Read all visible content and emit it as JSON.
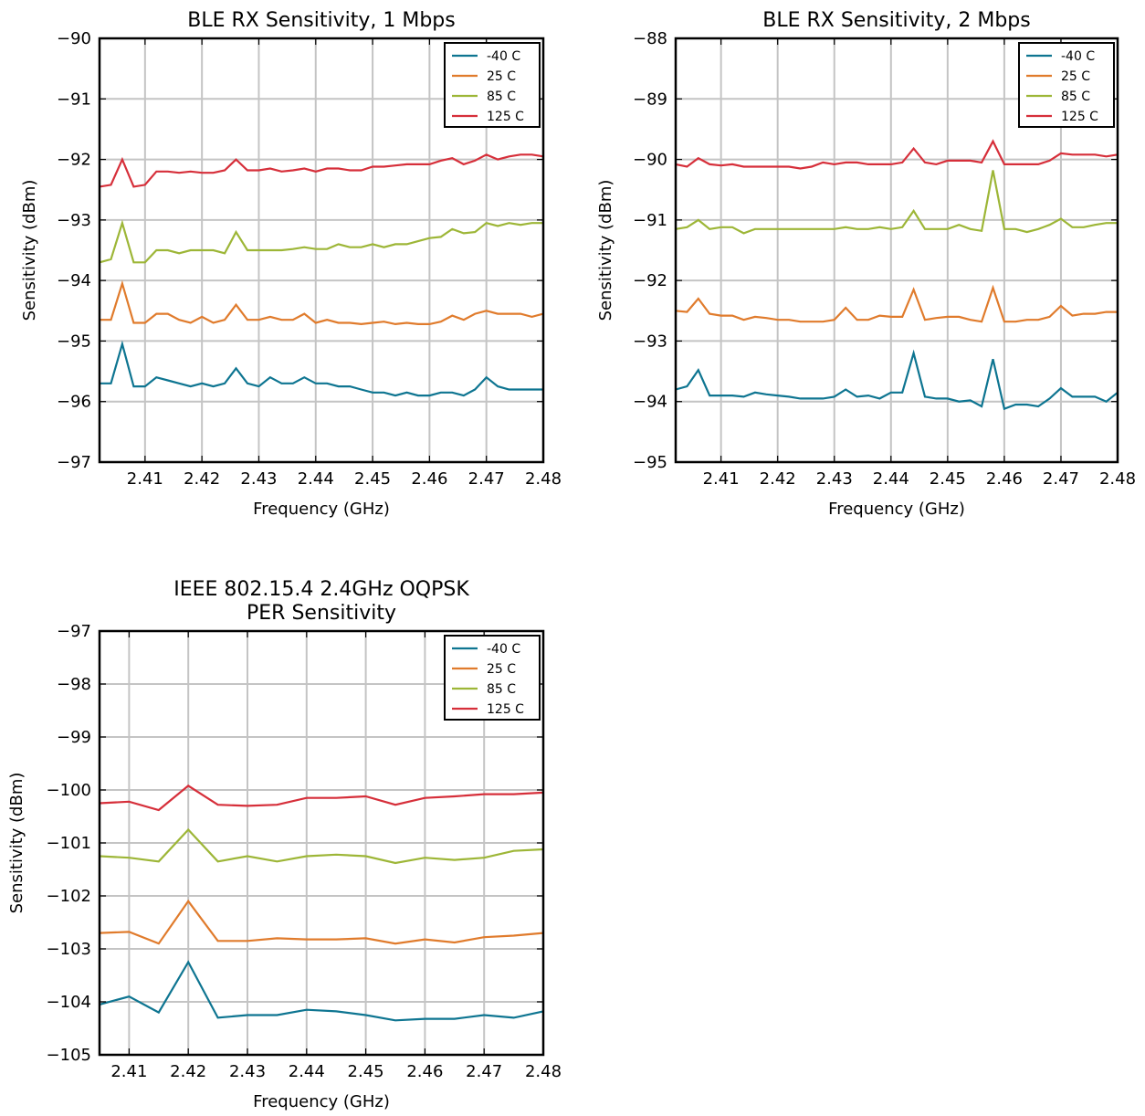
{
  "chart_data": [
    {
      "type": "line",
      "title_lines": [
        "BLE RX Sensitivity, 1 Mbps"
      ],
      "xlabel": "Frequency (GHz)",
      "ylabel": "Sensitivity (dBm)",
      "xlim": [
        2.402,
        2.48
      ],
      "ylim": [
        -97,
        -90
      ],
      "x_ticks": [
        2.41,
        2.42,
        2.43,
        2.44,
        2.45,
        2.46,
        2.47,
        2.48
      ],
      "x_tick_labels": [
        "2.41",
        "2.42",
        "2.43",
        "2.44",
        "2.45",
        "2.46",
        "2.47",
        "2.48"
      ],
      "y_ticks": [
        -97,
        -96,
        -95,
        -94,
        -93,
        -92,
        -91,
        -90
      ],
      "y_tick_labels": [
        "−97",
        "−96",
        "−95",
        "−94",
        "−93",
        "−92",
        "−91",
        "−90"
      ],
      "grid": true,
      "legend_position": "top-right",
      "x": [
        2.402,
        2.404,
        2.406,
        2.408,
        2.41,
        2.412,
        2.414,
        2.416,
        2.418,
        2.42,
        2.422,
        2.424,
        2.426,
        2.428,
        2.43,
        2.432,
        2.434,
        2.436,
        2.438,
        2.44,
        2.442,
        2.444,
        2.446,
        2.448,
        2.45,
        2.452,
        2.454,
        2.456,
        2.458,
        2.46,
        2.462,
        2.464,
        2.466,
        2.468,
        2.47,
        2.472,
        2.474,
        2.476,
        2.478,
        2.48
      ],
      "series": [
        {
          "name": "-40 C",
          "color": "#0e7591",
          "values": [
            -95.7,
            -95.7,
            -95.05,
            -95.75,
            -95.75,
            -95.6,
            -95.65,
            -95.7,
            -95.75,
            -95.7,
            -95.75,
            -95.7,
            -95.45,
            -95.7,
            -95.75,
            -95.6,
            -95.7,
            -95.7,
            -95.6,
            -95.7,
            -95.7,
            -95.75,
            -95.75,
            -95.8,
            -95.85,
            -95.85,
            -95.9,
            -95.85,
            -95.9,
            -95.9,
            -95.85,
            -95.85,
            -95.9,
            -95.8,
            -95.6,
            -95.75,
            -95.8,
            -95.8,
            -95.8,
            -95.8
          ]
        },
        {
          "name": "25 C",
          "color": "#e07b2c",
          "values": [
            -94.65,
            -94.65,
            -94.05,
            -94.7,
            -94.7,
            -94.55,
            -94.55,
            -94.65,
            -94.7,
            -94.6,
            -94.7,
            -94.65,
            -94.4,
            -94.65,
            -94.65,
            -94.6,
            -94.65,
            -94.65,
            -94.55,
            -94.7,
            -94.65,
            -94.7,
            -94.7,
            -94.72,
            -94.7,
            -94.68,
            -94.72,
            -94.7,
            -94.72,
            -94.72,
            -94.68,
            -94.58,
            -94.65,
            -94.55,
            -94.5,
            -94.55,
            -94.55,
            -94.55,
            -94.6,
            -94.55
          ]
        },
        {
          "name": "85 C",
          "color": "#9db637",
          "values": [
            -93.7,
            -93.65,
            -93.05,
            -93.7,
            -93.7,
            -93.5,
            -93.5,
            -93.55,
            -93.5,
            -93.5,
            -93.5,
            -93.55,
            -93.2,
            -93.5,
            -93.5,
            -93.5,
            -93.5,
            -93.48,
            -93.45,
            -93.48,
            -93.48,
            -93.4,
            -93.45,
            -93.45,
            -93.4,
            -93.45,
            -93.4,
            -93.4,
            -93.35,
            -93.3,
            -93.28,
            -93.15,
            -93.22,
            -93.2,
            -93.05,
            -93.1,
            -93.05,
            -93.08,
            -93.05,
            -93.05
          ]
        },
        {
          "name": "125 C",
          "color": "#d62f3a",
          "values": [
            -92.45,
            -92.42,
            -92.0,
            -92.45,
            -92.42,
            -92.2,
            -92.2,
            -92.22,
            -92.2,
            -92.22,
            -92.22,
            -92.18,
            -92.0,
            -92.18,
            -92.18,
            -92.15,
            -92.2,
            -92.18,
            -92.15,
            -92.2,
            -92.15,
            -92.15,
            -92.18,
            -92.18,
            -92.12,
            -92.12,
            -92.1,
            -92.08,
            -92.08,
            -92.08,
            -92.02,
            -91.98,
            -92.08,
            -92.02,
            -91.92,
            -92.0,
            -91.95,
            -91.92,
            -91.92,
            -91.95
          ]
        }
      ]
    },
    {
      "type": "line",
      "title_lines": [
        "BLE RX Sensitivity, 2 Mbps"
      ],
      "xlabel": "Frequency (GHz)",
      "ylabel": "Sensitivity (dBm)",
      "xlim": [
        2.402,
        2.48
      ],
      "ylim": [
        -95,
        -88
      ],
      "x_ticks": [
        2.41,
        2.42,
        2.43,
        2.44,
        2.45,
        2.46,
        2.47,
        2.48
      ],
      "x_tick_labels": [
        "2.41",
        "2.42",
        "2.43",
        "2.44",
        "2.45",
        "2.46",
        "2.47",
        "2.48"
      ],
      "y_ticks": [
        -95,
        -94,
        -93,
        -92,
        -91,
        -90,
        -89,
        -88
      ],
      "y_tick_labels": [
        "−95",
        "−94",
        "−93",
        "−92",
        "−91",
        "−90",
        "−89",
        "−88"
      ],
      "grid": true,
      "legend_position": "top-right",
      "x": [
        2.402,
        2.404,
        2.406,
        2.408,
        2.41,
        2.412,
        2.414,
        2.416,
        2.418,
        2.42,
        2.422,
        2.424,
        2.426,
        2.428,
        2.43,
        2.432,
        2.434,
        2.436,
        2.438,
        2.44,
        2.442,
        2.444,
        2.446,
        2.448,
        2.45,
        2.452,
        2.454,
        2.456,
        2.458,
        2.46,
        2.462,
        2.464,
        2.466,
        2.468,
        2.47,
        2.472,
        2.474,
        2.476,
        2.478,
        2.48
      ],
      "series": [
        {
          "name": "-40 C",
          "color": "#0e7591",
          "values": [
            -93.8,
            -93.75,
            -93.48,
            -93.9,
            -93.9,
            -93.9,
            -93.92,
            -93.85,
            -93.88,
            -93.9,
            -93.92,
            -93.95,
            -93.95,
            -93.95,
            -93.92,
            -93.8,
            -93.92,
            -93.9,
            -93.95,
            -93.85,
            -93.85,
            -93.2,
            -93.92,
            -93.95,
            -93.95,
            -94.0,
            -93.98,
            -94.08,
            -93.3,
            -94.12,
            -94.05,
            -94.05,
            -94.08,
            -93.95,
            -93.78,
            -93.92,
            -93.92,
            -93.92,
            -94.0,
            -93.85
          ]
        },
        {
          "name": "25 C",
          "color": "#e07b2c",
          "values": [
            -92.5,
            -92.52,
            -92.3,
            -92.55,
            -92.58,
            -92.58,
            -92.65,
            -92.6,
            -92.62,
            -92.65,
            -92.65,
            -92.68,
            -92.68,
            -92.68,
            -92.65,
            -92.45,
            -92.65,
            -92.65,
            -92.58,
            -92.6,
            -92.6,
            -92.15,
            -92.65,
            -92.62,
            -92.6,
            -92.6,
            -92.65,
            -92.68,
            -92.12,
            -92.68,
            -92.68,
            -92.65,
            -92.65,
            -92.6,
            -92.42,
            -92.58,
            -92.55,
            -92.55,
            -92.52,
            -92.52
          ]
        },
        {
          "name": "85 C",
          "color": "#9db637",
          "values": [
            -91.15,
            -91.12,
            -91.0,
            -91.15,
            -91.12,
            -91.12,
            -91.22,
            -91.15,
            -91.15,
            -91.15,
            -91.15,
            -91.15,
            -91.15,
            -91.15,
            -91.15,
            -91.12,
            -91.15,
            -91.15,
            -91.12,
            -91.15,
            -91.12,
            -90.85,
            -91.15,
            -91.15,
            -91.15,
            -91.08,
            -91.15,
            -91.18,
            -90.18,
            -91.15,
            -91.15,
            -91.2,
            -91.15,
            -91.08,
            -90.98,
            -91.12,
            -91.12,
            -91.08,
            -91.05,
            -91.05
          ]
        },
        {
          "name": "125 C",
          "color": "#d62f3a",
          "values": [
            -90.08,
            -90.12,
            -89.98,
            -90.08,
            -90.1,
            -90.08,
            -90.12,
            -90.12,
            -90.12,
            -90.12,
            -90.12,
            -90.15,
            -90.12,
            -90.05,
            -90.08,
            -90.05,
            -90.05,
            -90.08,
            -90.08,
            -90.08,
            -90.05,
            -89.82,
            -90.05,
            -90.08,
            -90.02,
            -90.02,
            -90.02,
            -90.05,
            -89.7,
            -90.08,
            -90.08,
            -90.08,
            -90.08,
            -90.02,
            -89.9,
            -89.92,
            -89.92,
            -89.92,
            -89.95,
            -89.92
          ]
        }
      ]
    },
    {
      "type": "line",
      "title_lines": [
        "IEEE 802.15.4 2.4GHz OQPSK",
        "PER Sensitivity"
      ],
      "xlabel": "Frequency (GHz)",
      "ylabel": "Sensitivity (dBm)",
      "xlim": [
        2.405,
        2.48
      ],
      "ylim": [
        -105,
        -97
      ],
      "x_ticks": [
        2.41,
        2.42,
        2.43,
        2.44,
        2.45,
        2.46,
        2.47,
        2.48
      ],
      "x_tick_labels": [
        "2.41",
        "2.42",
        "2.43",
        "2.44",
        "2.45",
        "2.46",
        "2.47",
        "2.48"
      ],
      "y_ticks": [
        -105,
        -104,
        -103,
        -102,
        -101,
        -100,
        -99,
        -98,
        -97
      ],
      "y_tick_labels": [
        "−105",
        "−104",
        "−103",
        "−102",
        "−101",
        "−100",
        "−99",
        "−98",
        "−97"
      ],
      "grid": true,
      "legend_position": "top-right",
      "x": [
        2.405,
        2.41,
        2.415,
        2.42,
        2.425,
        2.43,
        2.435,
        2.44,
        2.445,
        2.45,
        2.455,
        2.46,
        2.465,
        2.47,
        2.475,
        2.48
      ],
      "series": [
        {
          "name": "-40 C",
          "color": "#0e7591",
          "values": [
            -104.05,
            -103.9,
            -104.2,
            -103.25,
            -104.3,
            -104.25,
            -104.25,
            -104.15,
            -104.18,
            -104.25,
            -104.35,
            -104.32,
            -104.32,
            -104.25,
            -104.3,
            -104.18
          ]
        },
        {
          "name": "25 C",
          "color": "#e07b2c",
          "values": [
            -102.7,
            -102.68,
            -102.9,
            -102.1,
            -102.85,
            -102.85,
            -102.8,
            -102.82,
            -102.82,
            -102.8,
            -102.9,
            -102.82,
            -102.88,
            -102.78,
            -102.75,
            -102.7
          ]
        },
        {
          "name": "85 C",
          "color": "#9db637",
          "values": [
            -101.25,
            -101.28,
            -101.35,
            -100.75,
            -101.35,
            -101.25,
            -101.35,
            -101.25,
            -101.22,
            -101.25,
            -101.38,
            -101.28,
            -101.32,
            -101.28,
            -101.15,
            -101.12
          ]
        },
        {
          "name": "125 C",
          "color": "#d62f3a",
          "values": [
            -100.25,
            -100.22,
            -100.38,
            -99.92,
            -100.28,
            -100.3,
            -100.28,
            -100.15,
            -100.15,
            -100.12,
            -100.28,
            -100.15,
            -100.12,
            -100.08,
            -100.08,
            -100.05
          ]
        }
      ]
    }
  ]
}
